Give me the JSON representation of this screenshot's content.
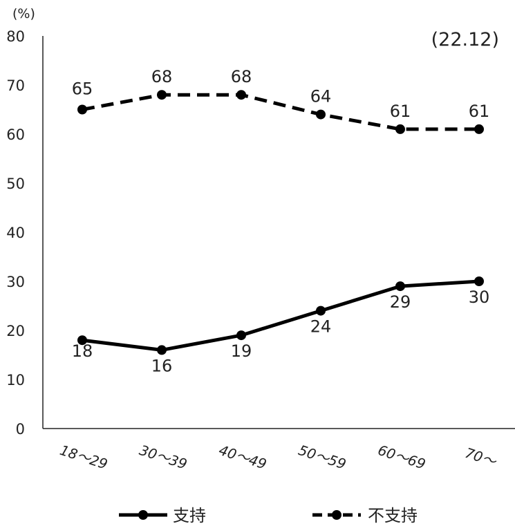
{
  "chart_data": {
    "type": "line",
    "y_unit_label": "(%)",
    "period_label": "(22.12)",
    "categories": [
      "18～29",
      "30～39",
      "40～49",
      "50～59",
      "60～69",
      "70～"
    ],
    "ylim": [
      0,
      80
    ],
    "y_ticks": [
      0,
      10,
      20,
      30,
      40,
      50,
      60,
      70,
      80
    ],
    "grid": false,
    "legend_position": "bottom",
    "series": [
      {
        "name": "支持",
        "values": [
          18,
          16,
          19,
          24,
          29,
          30
        ],
        "style": "solid",
        "color": "#000000"
      },
      {
        "name": "不支持",
        "values": [
          65,
          68,
          68,
          64,
          61,
          61
        ],
        "style": "dashed",
        "color": "#000000"
      }
    ]
  }
}
